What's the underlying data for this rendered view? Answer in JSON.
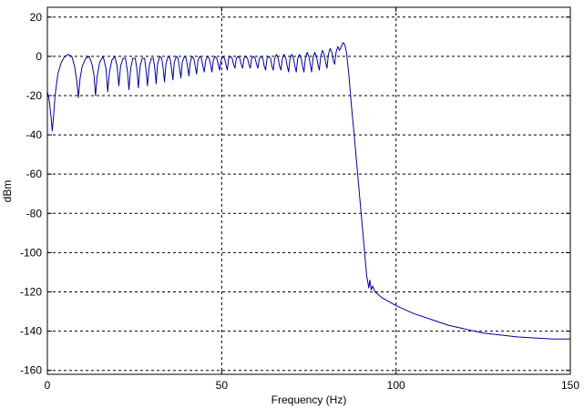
{
  "chart_data": {
    "type": "line",
    "title": "",
    "xlabel": "Frequency (Hz)",
    "ylabel": "dBm",
    "xlim": [
      0,
      150
    ],
    "ylim": [
      -162,
      25
    ],
    "xticks": [
      0,
      50,
      100,
      150
    ],
    "yticks": [
      20,
      0,
      -20,
      -40,
      -60,
      -80,
      -100,
      -120,
      -140,
      -160
    ],
    "grid": true,
    "grid_style": "dashed",
    "series": [
      {
        "color": "#0000a0",
        "points": [
          [
            0,
            -18
          ],
          [
            0.5,
            -22
          ],
          [
            1.0,
            -30
          ],
          [
            1.4,
            -38
          ],
          [
            1.8,
            -30
          ],
          [
            2.2,
            -20
          ],
          [
            3.0,
            -9
          ],
          [
            4.0,
            -3
          ],
          [
            5.0,
            0
          ],
          [
            6.0,
            1
          ],
          [
            7.0,
            0
          ],
          [
            7.8,
            -5
          ],
          [
            8.4,
            -12
          ],
          [
            8.9,
            -21
          ],
          [
            9.4,
            -11
          ],
          [
            10.0,
            -5
          ],
          [
            11.0,
            -1
          ],
          [
            12.0,
            0
          ],
          [
            12.8,
            -4
          ],
          [
            13.4,
            -10
          ],
          [
            13.8,
            -20
          ],
          [
            14.3,
            -10
          ],
          [
            15.0,
            -3
          ],
          [
            16.0,
            0
          ],
          [
            16.8,
            -6
          ],
          [
            17.3,
            -18
          ],
          [
            17.8,
            -8
          ],
          [
            18.5,
            -2
          ],
          [
            19.3,
            0
          ],
          [
            20.0,
            -5
          ],
          [
            20.5,
            -15
          ],
          [
            21.0,
            -5
          ],
          [
            21.7,
            -1
          ],
          [
            22.4,
            -1
          ],
          [
            23.0,
            -8
          ],
          [
            23.4,
            -17
          ],
          [
            23.9,
            -6
          ],
          [
            24.5,
            -1
          ],
          [
            25.2,
            -1
          ],
          [
            25.7,
            -7
          ],
          [
            26.1,
            -16
          ],
          [
            26.6,
            -5
          ],
          [
            27.2,
            -1
          ],
          [
            27.9,
            -1
          ],
          [
            28.3,
            -7
          ],
          [
            28.7,
            -15
          ],
          [
            29.2,
            -5
          ],
          [
            29.8,
            -1
          ],
          [
            30.4,
            -1
          ],
          [
            30.8,
            -6
          ],
          [
            31.2,
            -14
          ],
          [
            31.6,
            -4
          ],
          [
            32.2,
            0
          ],
          [
            32.8,
            -1
          ],
          [
            33.2,
            -6
          ],
          [
            33.6,
            -13
          ],
          [
            34.0,
            -4
          ],
          [
            34.6,
            0
          ],
          [
            35.2,
            -1
          ],
          [
            35.6,
            -6
          ],
          [
            36.0,
            -12
          ],
          [
            36.4,
            -3
          ],
          [
            37.0,
            0
          ],
          [
            37.5,
            -1
          ],
          [
            37.9,
            -6
          ],
          [
            38.3,
            -11
          ],
          [
            38.7,
            -3
          ],
          [
            39.3,
            0
          ],
          [
            39.8,
            -1
          ],
          [
            40.2,
            -5
          ],
          [
            40.6,
            -10
          ],
          [
            41.0,
            -3
          ],
          [
            41.5,
            0
          ],
          [
            42.0,
            -1
          ],
          [
            42.4,
            -5
          ],
          [
            42.8,
            -9
          ],
          [
            43.2,
            -2
          ],
          [
            43.7,
            0
          ],
          [
            44.2,
            -1
          ],
          [
            44.6,
            -5
          ],
          [
            45.0,
            -8
          ],
          [
            45.4,
            -2
          ],
          [
            45.9,
            0
          ],
          [
            46.4,
            -1
          ],
          [
            46.8,
            -4
          ],
          [
            47.2,
            -8
          ],
          [
            47.6,
            -2
          ],
          [
            48.1,
            0
          ],
          [
            48.6,
            -1
          ],
          [
            49.0,
            -4
          ],
          [
            49.4,
            -7
          ],
          [
            49.8,
            -2
          ],
          [
            50.3,
            0
          ],
          [
            50.8,
            -1
          ],
          [
            51.2,
            -4
          ],
          [
            51.6,
            -7
          ],
          [
            52.0,
            -1
          ],
          [
            52.5,
            0
          ],
          [
            53.0,
            -1
          ],
          [
            53.4,
            -4
          ],
          [
            53.8,
            -6
          ],
          [
            54.2,
            -1
          ],
          [
            54.7,
            0
          ],
          [
            55.2,
            -1
          ],
          [
            55.6,
            -4
          ],
          [
            56.0,
            -6
          ],
          [
            56.4,
            -1
          ],
          [
            56.9,
            0
          ],
          [
            57.4,
            -1
          ],
          [
            57.8,
            -4
          ],
          [
            58.2,
            -6
          ],
          [
            58.6,
            -1
          ],
          [
            59.1,
            0
          ],
          [
            59.6,
            -1
          ],
          [
            60.0,
            -4
          ],
          [
            60.4,
            -6
          ],
          [
            60.8,
            -1
          ],
          [
            61.3,
            0
          ],
          [
            61.8,
            -1
          ],
          [
            62.2,
            -5
          ],
          [
            62.6,
            -7
          ],
          [
            63.0,
            -1
          ],
          [
            63.5,
            0
          ],
          [
            64.0,
            -1
          ],
          [
            64.4,
            -5
          ],
          [
            64.8,
            -7
          ],
          [
            65.2,
            -1
          ],
          [
            65.7,
            1
          ],
          [
            66.2,
            -1
          ],
          [
            66.6,
            -5
          ],
          [
            67.0,
            -7
          ],
          [
            67.4,
            -1
          ],
          [
            67.9,
            1
          ],
          [
            68.4,
            -1
          ],
          [
            68.8,
            -5
          ],
          [
            69.2,
            -8
          ],
          [
            69.6,
            -1
          ],
          [
            70.1,
            1
          ],
          [
            70.6,
            -1
          ],
          [
            71.0,
            -5
          ],
          [
            71.4,
            -8
          ],
          [
            71.8,
            -1
          ],
          [
            72.3,
            1
          ],
          [
            72.8,
            -1
          ],
          [
            73.2,
            -5
          ],
          [
            73.6,
            -8
          ],
          [
            74.0,
            -1
          ],
          [
            74.5,
            2
          ],
          [
            75.0,
            0
          ],
          [
            75.4,
            -4
          ],
          [
            75.8,
            -8
          ],
          [
            76.2,
            -1
          ],
          [
            76.7,
            2
          ],
          [
            77.2,
            0
          ],
          [
            77.6,
            -4
          ],
          [
            78.0,
            -7
          ],
          [
            78.4,
            0
          ],
          [
            78.9,
            3
          ],
          [
            79.4,
            1
          ],
          [
            79.8,
            -3
          ],
          [
            80.2,
            -6
          ],
          [
            80.6,
            1
          ],
          [
            81.1,
            4
          ],
          [
            81.6,
            2
          ],
          [
            82.0,
            -2
          ],
          [
            82.4,
            -4
          ],
          [
            82.8,
            2
          ],
          [
            83.3,
            5
          ],
          [
            83.8,
            3
          ],
          [
            84.3,
            5
          ],
          [
            84.8,
            7
          ],
          [
            85.3,
            6
          ],
          [
            85.8,
            2
          ],
          [
            86.5,
            -10
          ],
          [
            87.2,
            -25
          ],
          [
            88.0,
            -40
          ],
          [
            89.0,
            -60
          ],
          [
            90.0,
            -80
          ],
          [
            91.0,
            -100
          ],
          [
            91.6,
            -112
          ],
          [
            92.2,
            -118
          ],
          [
            92.5,
            -114
          ],
          [
            92.9,
            -119
          ],
          [
            93.3,
            -117
          ],
          [
            94.0,
            -120
          ],
          [
            96.0,
            -123
          ],
          [
            100.0,
            -127
          ],
          [
            105.0,
            -131
          ],
          [
            110.0,
            -134
          ],
          [
            115.0,
            -137
          ],
          [
            120.0,
            -139
          ],
          [
            125.0,
            -141
          ],
          [
            130.0,
            -142
          ],
          [
            135.0,
            -143
          ],
          [
            140.0,
            -143.5
          ],
          [
            145.0,
            -144
          ],
          [
            150.0,
            -144
          ]
        ]
      }
    ]
  }
}
